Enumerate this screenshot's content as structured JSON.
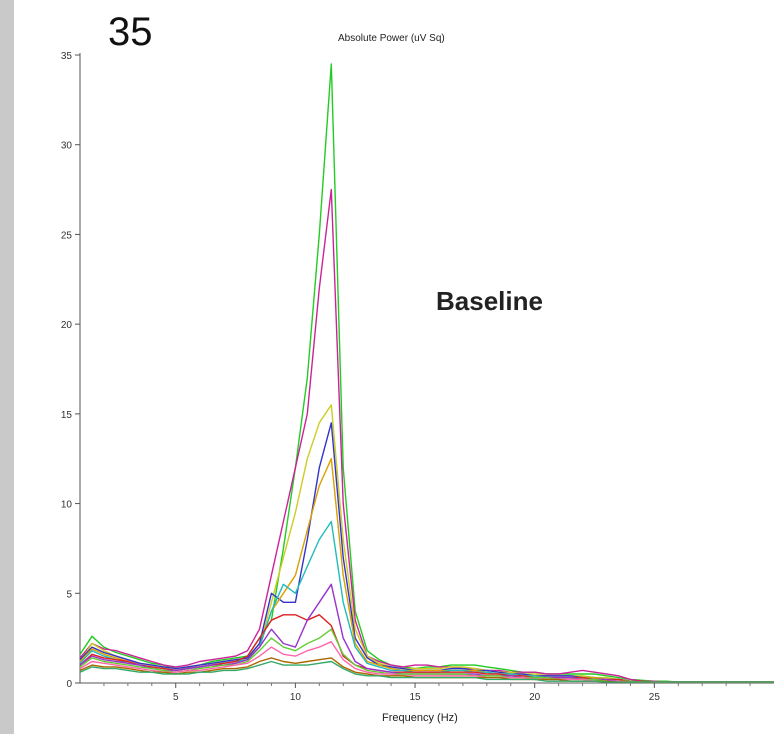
{
  "overlay": {
    "big_label": "35",
    "annotation": "Baseline"
  },
  "chart_data": {
    "type": "line",
    "title": "Absolute Power (uV Sq)",
    "xlabel": "Frequency (Hz)",
    "ylabel": "",
    "xlim": [
      1,
      30
    ],
    "ylim": [
      0,
      35
    ],
    "x_ticks": [
      5,
      10,
      15,
      20,
      25
    ],
    "y_ticks": [
      0,
      5,
      10,
      15,
      20,
      25,
      30,
      35
    ],
    "grid": false,
    "x": [
      1,
      1.5,
      2,
      2.5,
      3,
      3.5,
      4,
      4.5,
      5,
      5.5,
      6,
      6.5,
      7,
      7.5,
      8,
      8.5,
      9,
      9.5,
      10,
      10.5,
      11,
      11.5,
      12,
      12.5,
      13,
      13.5,
      14,
      14.5,
      15,
      15.5,
      16,
      16.5,
      17,
      17.5,
      18,
      18.5,
      19,
      19.5,
      20,
      20.5,
      21,
      21.5,
      22,
      22.5,
      23,
      23.5,
      24,
      24.5,
      25,
      25.5,
      26,
      26.5,
      27,
      27.5,
      28,
      28.5,
      29,
      29.5,
      30
    ],
    "series": [
      {
        "color": "#22cc22",
        "values": [
          1.6,
          2.6,
          2.0,
          1.7,
          1.5,
          1.3,
          1.1,
          1.0,
          0.8,
          0.9,
          1.0,
          1.2,
          1.3,
          1.4,
          1.5,
          2.5,
          3.5,
          7.5,
          12.0,
          17.0,
          25.0,
          34.5,
          12.0,
          4.0,
          1.8,
          1.3,
          1.0,
          0.9,
          0.8,
          0.9,
          0.9,
          1.0,
          1.0,
          1.0,
          0.9,
          0.8,
          0.7,
          0.6,
          0.6,
          0.5,
          0.5,
          0.5,
          0.5,
          0.5,
          0.4,
          0.3,
          0.2,
          0.15,
          0.1,
          0.1,
          0.05,
          0.05,
          0.05,
          0.05,
          0.05,
          0.05,
          0.05,
          0.05,
          0.05
        ]
      },
      {
        "color": "#cc2299",
        "values": [
          1.4,
          2.2,
          1.9,
          1.8,
          1.6,
          1.4,
          1.2,
          1.0,
          0.9,
          1.0,
          1.2,
          1.3,
          1.4,
          1.5,
          1.8,
          3.0,
          6.0,
          9.0,
          12.0,
          15.0,
          22.0,
          27.5,
          10.0,
          3.5,
          1.5,
          1.2,
          1.0,
          0.9,
          1.0,
          1.0,
          0.9,
          0.9,
          0.8,
          0.8,
          0.7,
          0.7,
          0.6,
          0.6,
          0.6,
          0.5,
          0.5,
          0.6,
          0.7,
          0.6,
          0.5,
          0.4,
          0.2,
          0.1,
          0.1,
          0.05,
          0.05,
          0.05,
          0.05,
          0.05,
          0.05,
          0.05,
          0.05,
          0.05,
          0.05
        ]
      },
      {
        "color": "#cccc22",
        "values": [
          1.2,
          2.2,
          1.8,
          1.5,
          1.3,
          1.1,
          1.0,
          0.9,
          0.8,
          0.9,
          1.0,
          1.1,
          1.2,
          1.3,
          1.4,
          2.0,
          4.5,
          7.0,
          9.5,
          12.5,
          14.5,
          15.5,
          8.0,
          3.0,
          1.5,
          1.1,
          0.9,
          0.8,
          0.8,
          0.8,
          0.8,
          0.9,
          0.9,
          0.8,
          0.7,
          0.6,
          0.6,
          0.5,
          0.5,
          0.4,
          0.4,
          0.4,
          0.4,
          0.3,
          0.3,
          0.2,
          0.1,
          0.1,
          0.05,
          0.05,
          0.05,
          0.05,
          0.05,
          0.05,
          0.05,
          0.05,
          0.05,
          0.05,
          0.05
        ]
      },
      {
        "color": "#3333cc",
        "values": [
          1.3,
          2.0,
          1.7,
          1.5,
          1.3,
          1.1,
          1.0,
          0.9,
          0.8,
          0.9,
          1.0,
          1.1,
          1.2,
          1.3,
          1.4,
          2.2,
          5.0,
          4.5,
          4.5,
          8.0,
          12.0,
          14.5,
          7.0,
          2.5,
          1.4,
          1.0,
          0.9,
          0.8,
          0.7,
          0.7,
          0.7,
          0.8,
          0.8,
          0.7,
          0.7,
          0.6,
          0.5,
          0.5,
          0.4,
          0.4,
          0.4,
          0.4,
          0.3,
          0.3,
          0.2,
          0.2,
          0.1,
          0.1,
          0.05,
          0.05,
          0.05,
          0.05,
          0.05,
          0.05,
          0.05,
          0.05,
          0.05,
          0.05,
          0.05
        ]
      },
      {
        "color": "#d9a000",
        "values": [
          1.2,
          1.9,
          1.6,
          1.4,
          1.2,
          1.0,
          0.9,
          0.8,
          0.7,
          0.8,
          0.9,
          1.0,
          1.1,
          1.2,
          1.3,
          2.0,
          4.0,
          5.0,
          6.0,
          8.5,
          11.0,
          12.5,
          6.0,
          2.2,
          1.2,
          1.0,
          0.8,
          0.7,
          0.7,
          0.7,
          0.7,
          0.7,
          0.7,
          0.7,
          0.6,
          0.5,
          0.5,
          0.4,
          0.4,
          0.3,
          0.3,
          0.3,
          0.3,
          0.3,
          0.2,
          0.2,
          0.1,
          0.1,
          0.05,
          0.05,
          0.05,
          0.05,
          0.05,
          0.05,
          0.05,
          0.05,
          0.05,
          0.05,
          0.05
        ]
      },
      {
        "color": "#22bbbb",
        "values": [
          1.1,
          1.8,
          1.5,
          1.3,
          1.1,
          1.0,
          0.9,
          0.8,
          0.7,
          0.8,
          0.9,
          1.0,
          1.1,
          1.2,
          1.3,
          2.0,
          4.0,
          5.5,
          5.0,
          6.5,
          8.0,
          9.0,
          4.5,
          2.0,
          1.1,
          0.9,
          0.7,
          0.7,
          0.6,
          0.6,
          0.6,
          0.7,
          0.7,
          0.6,
          0.6,
          0.5,
          0.5,
          0.4,
          0.4,
          0.3,
          0.3,
          0.3,
          0.3,
          0.2,
          0.2,
          0.2,
          0.1,
          0.1,
          0.05,
          0.05,
          0.05,
          0.05,
          0.05,
          0.05,
          0.05,
          0.05,
          0.05,
          0.05,
          0.05
        ]
      },
      {
        "color": "#dd2222",
        "values": [
          1.0,
          1.6,
          1.4,
          1.3,
          1.2,
          1.0,
          0.9,
          0.8,
          0.7,
          0.8,
          0.9,
          1.0,
          1.1,
          1.2,
          1.5,
          2.5,
          3.5,
          3.8,
          3.8,
          3.5,
          3.8,
          3.2,
          1.5,
          1.0,
          0.8,
          0.7,
          0.6,
          0.6,
          0.6,
          0.6,
          0.6,
          0.6,
          0.6,
          0.6,
          0.5,
          0.5,
          0.4,
          0.4,
          0.3,
          0.3,
          0.3,
          0.3,
          0.3,
          0.2,
          0.2,
          0.2,
          0.1,
          0.1,
          0.05,
          0.05,
          0.05,
          0.05,
          0.05,
          0.05,
          0.05,
          0.05,
          0.05,
          0.05,
          0.05
        ]
      },
      {
        "color": "#9933cc",
        "values": [
          1.0,
          1.5,
          1.3,
          1.2,
          1.1,
          1.0,
          0.8,
          0.7,
          0.7,
          0.8,
          0.9,
          1.0,
          1.0,
          1.1,
          1.3,
          2.0,
          3.0,
          2.2,
          2.0,
          3.5,
          4.5,
          5.5,
          2.5,
          1.2,
          0.8,
          0.7,
          0.6,
          0.5,
          0.5,
          0.5,
          0.5,
          0.5,
          0.5,
          0.5,
          0.4,
          0.4,
          0.4,
          0.3,
          0.3,
          0.3,
          0.3,
          0.3,
          0.2,
          0.2,
          0.2,
          0.1,
          0.1,
          0.05,
          0.05,
          0.05,
          0.05,
          0.05,
          0.05,
          0.05,
          0.05,
          0.05,
          0.05,
          0.05,
          0.05
        ]
      },
      {
        "color": "#66cc33",
        "values": [
          0.9,
          1.4,
          1.2,
          1.1,
          1.0,
          0.9,
          0.8,
          0.7,
          0.6,
          0.7,
          0.8,
          0.9,
          1.0,
          1.0,
          1.2,
          1.8,
          2.5,
          2.0,
          1.8,
          2.2,
          2.5,
          3.0,
          1.6,
          1.0,
          0.7,
          0.6,
          0.5,
          0.5,
          0.5,
          0.5,
          0.5,
          0.5,
          0.5,
          0.4,
          0.4,
          0.4,
          0.3,
          0.3,
          0.3,
          0.3,
          0.2,
          0.2,
          0.2,
          0.2,
          0.1,
          0.1,
          0.1,
          0.05,
          0.05,
          0.05,
          0.05,
          0.05,
          0.05,
          0.05,
          0.05,
          0.05,
          0.05,
          0.05,
          0.05
        ]
      },
      {
        "color": "#ff66aa",
        "values": [
          0.8,
          1.2,
          1.1,
          1.0,
          0.9,
          0.8,
          0.7,
          0.6,
          0.6,
          0.7,
          0.7,
          0.8,
          0.9,
          1.0,
          1.1,
          1.5,
          2.0,
          1.6,
          1.5,
          1.8,
          2.0,
          2.3,
          1.3,
          0.8,
          0.6,
          0.5,
          0.5,
          0.4,
          0.4,
          0.4,
          0.4,
          0.4,
          0.4,
          0.4,
          0.3,
          0.3,
          0.3,
          0.3,
          0.2,
          0.2,
          0.2,
          0.2,
          0.2,
          0.1,
          0.1,
          0.1,
          0.05,
          0.05,
          0.05,
          0.05,
          0.05,
          0.05,
          0.05,
          0.05,
          0.05,
          0.05,
          0.05,
          0.05,
          0.05
        ]
      },
      {
        "color": "#aa6600",
        "values": [
          0.7,
          1.0,
          0.9,
          0.9,
          0.8,
          0.7,
          0.6,
          0.6,
          0.5,
          0.6,
          0.6,
          0.7,
          0.8,
          0.8,
          0.9,
          1.2,
          1.4,
          1.2,
          1.1,
          1.2,
          1.3,
          1.4,
          0.9,
          0.6,
          0.5,
          0.4,
          0.4,
          0.4,
          0.3,
          0.3,
          0.3,
          0.3,
          0.3,
          0.3,
          0.3,
          0.3,
          0.2,
          0.2,
          0.2,
          0.2,
          0.2,
          0.1,
          0.1,
          0.1,
          0.1,
          0.05,
          0.05,
          0.05,
          0.05,
          0.05,
          0.05,
          0.05,
          0.05,
          0.05,
          0.05,
          0.05,
          0.05,
          0.05,
          0.05
        ]
      },
      {
        "color": "#33aa66",
        "values": [
          0.6,
          0.9,
          0.8,
          0.8,
          0.7,
          0.6,
          0.6,
          0.5,
          0.5,
          0.5,
          0.6,
          0.6,
          0.7,
          0.7,
          0.8,
          1.0,
          1.2,
          1.0,
          1.0,
          1.0,
          1.1,
          1.2,
          0.8,
          0.5,
          0.4,
          0.4,
          0.3,
          0.3,
          0.3,
          0.3,
          0.3,
          0.3,
          0.3,
          0.3,
          0.2,
          0.2,
          0.2,
          0.2,
          0.2,
          0.1,
          0.1,
          0.1,
          0.1,
          0.1,
          0.05,
          0.05,
          0.05,
          0.05,
          0.05,
          0.05,
          0.05,
          0.05,
          0.05,
          0.05,
          0.05,
          0.05,
          0.05,
          0.05,
          0.05
        ]
      }
    ]
  }
}
